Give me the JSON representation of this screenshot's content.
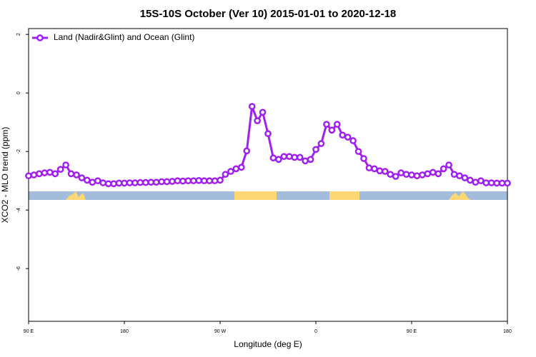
{
  "chart_data": {
    "type": "line",
    "title": "15S-10S October (Ver 10)   2015-01-01 to 2020-12-18",
    "x_label": "Longitude (deg E)",
    "y_label": "XCO2 - MLO trend (ppm)",
    "x": [
      90,
      95,
      100,
      105,
      110,
      115,
      120,
      125,
      130,
      135,
      140,
      145,
      150,
      155,
      160,
      165,
      170,
      175,
      180,
      185,
      190,
      195,
      200,
      205,
      210,
      215,
      220,
      225,
      230,
      235,
      240,
      245,
      250,
      255,
      260,
      265,
      270,
      275,
      280,
      285,
      290,
      295,
      300,
      305,
      310,
      315,
      320,
      325,
      330,
      335,
      340,
      345,
      350,
      355,
      360,
      365,
      370,
      375,
      380,
      385,
      390,
      395,
      400,
      405,
      410,
      415,
      420,
      425,
      430,
      435,
      440,
      445,
      450,
      455,
      460,
      465,
      470,
      475,
      480,
      485,
      490,
      495,
      500,
      505,
      510,
      515,
      520,
      525,
      530,
      535,
      540
    ],
    "series": [
      {
        "name": "Land (Nadir&Glint) and Ocean (Glint)",
        "color": "#a020f0",
        "values": [
          -2.83,
          -2.8,
          -2.76,
          -2.73,
          -2.71,
          -2.76,
          -2.61,
          -2.46,
          -2.76,
          -2.8,
          -2.9,
          -2.98,
          -3.05,
          -3.0,
          -3.07,
          -3.1,
          -3.1,
          -3.08,
          -3.08,
          -3.07,
          -3.07,
          -3.06,
          -3.06,
          -3.05,
          -3.05,
          -3.03,
          -3.03,
          -3.02,
          -3.0,
          -3.01,
          -3.0,
          -3.0,
          -2.99,
          -3.0,
          -3.0,
          -3.0,
          -2.98,
          -2.78,
          -2.68,
          -2.59,
          -2.54,
          -1.98,
          -0.46,
          -0.95,
          -0.66,
          -1.39,
          -2.22,
          -2.27,
          -2.17,
          -2.17,
          -2.2,
          -2.2,
          -2.32,
          -2.27,
          -1.93,
          -1.73,
          -1.07,
          -1.27,
          -1.07,
          -1.44,
          -1.51,
          -1.63,
          -2.0,
          -2.24,
          -2.56,
          -2.59,
          -2.66,
          -2.68,
          -2.78,
          -2.85,
          -2.73,
          -2.78,
          -2.8,
          -2.83,
          -2.8,
          -2.76,
          -2.71,
          -2.76,
          -2.59,
          -2.46,
          -2.78,
          -2.83,
          -2.9,
          -2.98,
          -3.05,
          -3.0,
          -3.07,
          -3.07,
          -3.08,
          -3.08,
          -3.08
        ]
      }
    ],
    "xlim": [
      90,
      540
    ],
    "xticks": [
      {
        "value": 90,
        "label": "90 E"
      },
      180,
      {
        "value": 270,
        "label": "90 W"
      },
      {
        "value": 360,
        "label": "0"
      },
      {
        "value": 450,
        "label": "90 E"
      },
      {
        "value": 540,
        "label": "180"
      }
    ],
    "ylim": [
      -7.8,
      2.2
    ],
    "yticks": [
      2,
      0,
      -2,
      -4,
      -6
    ],
    "legend": "top-left"
  }
}
